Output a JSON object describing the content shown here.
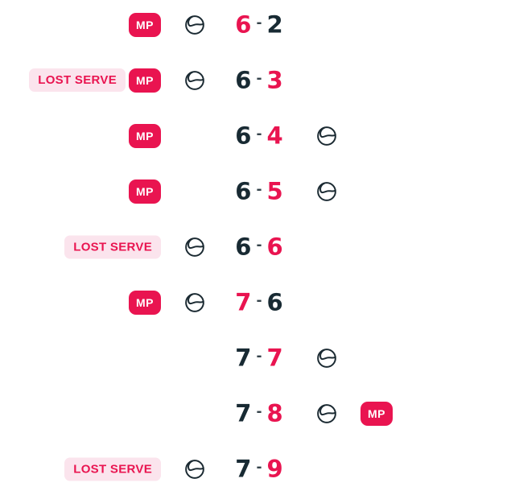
{
  "colors": {
    "background": "#FFFFFF",
    "accent": "#E91450",
    "dark_text": "#182A33",
    "dash": "#35434B",
    "lost_serve_bg": "#FBE4ED",
    "badge_text": "#FFFFFF",
    "ball_stroke": "#1B2A32"
  },
  "labels": {
    "match_point_badge": "MP",
    "lost_serve_badge": "LOST SERVE",
    "score_separator": "-"
  },
  "icons": {
    "serve_indicator": "tennis-ball-icon"
  },
  "rows": [
    {
      "left_badges": [
        "match_point"
      ],
      "serve": "left",
      "home": "6",
      "away": "2",
      "point_winner": "home",
      "right_badges": []
    },
    {
      "left_badges": [
        "lost_serve",
        "match_point"
      ],
      "serve": "left",
      "home": "6",
      "away": "3",
      "point_winner": "away",
      "right_badges": []
    },
    {
      "left_badges": [
        "match_point"
      ],
      "serve": "right",
      "home": "6",
      "away": "4",
      "point_winner": "away",
      "right_badges": []
    },
    {
      "left_badges": [
        "match_point"
      ],
      "serve": "right",
      "home": "6",
      "away": "5",
      "point_winner": "away",
      "right_badges": []
    },
    {
      "left_badges": [
        "lost_serve"
      ],
      "serve": "left",
      "home": "6",
      "away": "6",
      "point_winner": "away",
      "right_badges": []
    },
    {
      "left_badges": [
        "match_point"
      ],
      "serve": "left",
      "home": "7",
      "away": "6",
      "point_winner": "home",
      "right_badges": []
    },
    {
      "left_badges": [],
      "serve": "right",
      "home": "7",
      "away": "7",
      "point_winner": "away",
      "right_badges": []
    },
    {
      "left_badges": [],
      "serve": "right",
      "home": "7",
      "away": "8",
      "point_winner": "away",
      "right_badges": [
        "match_point"
      ]
    },
    {
      "left_badges": [
        "lost_serve"
      ],
      "serve": "left",
      "home": "7",
      "away": "9",
      "point_winner": "away",
      "right_badges": []
    }
  ]
}
